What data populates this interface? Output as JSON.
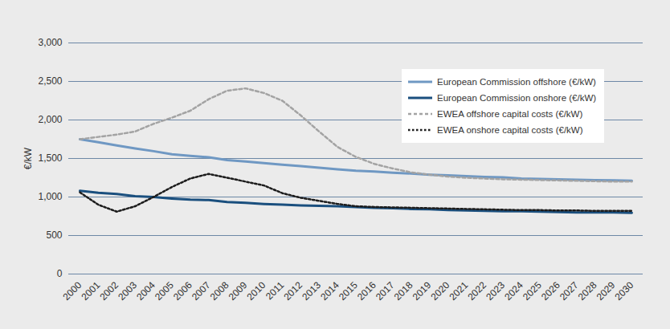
{
  "chart_data": {
    "type": "line",
    "y_label": "€/kW",
    "x": [
      2000,
      2001,
      2002,
      2003,
      2004,
      2005,
      2006,
      2007,
      2008,
      2009,
      2010,
      2011,
      2012,
      2013,
      2014,
      2015,
      2016,
      2017,
      2018,
      2019,
      2020,
      2021,
      2022,
      2023,
      2024,
      2025,
      2026,
      2027,
      2028,
      2029,
      2030
    ],
    "xlim": [
      2000,
      2030
    ],
    "xticks": [
      2000,
      2001,
      2002,
      2003,
      2004,
      2005,
      2006,
      2007,
      2008,
      2009,
      2010,
      2011,
      2012,
      2013,
      2014,
      2015,
      2016,
      2017,
      2018,
      2019,
      2020,
      2021,
      2022,
      2023,
      2024,
      2025,
      2026,
      2027,
      2028,
      2029,
      2030
    ],
    "ylim": [
      0,
      3000
    ],
    "yticks": [
      0,
      500,
      {
        "value": 1000,
        "label": "1,000"
      },
      {
        "value": 1500,
        "label": "1,500"
      },
      {
        "value": 2000,
        "label": "2,000"
      },
      {
        "value": 2500,
        "label": "2,500"
      },
      {
        "value": 3000,
        "label": "3,000"
      }
    ],
    "grid": true,
    "legend": "top-right",
    "series": [
      {
        "name": "European Commission offshore (€/kW)",
        "color": "#6f98c3",
        "line_style": "solid",
        "values": [
          1750,
          1710,
          1670,
          1630,
          1595,
          1555,
          1535,
          1515,
          1480,
          1460,
          1440,
          1420,
          1400,
          1380,
          1360,
          1340,
          1330,
          1315,
          1305,
          1290,
          1280,
          1270,
          1260,
          1255,
          1240,
          1235,
          1230,
          1225,
          1220,
          1215,
          1210
        ]
      },
      {
        "name": "European Commission onshore (€/kW)",
        "color": "#1a4f7e",
        "line_style": "solid",
        "values": [
          1080,
          1055,
          1040,
          1010,
          1000,
          980,
          965,
          960,
          935,
          925,
          910,
          900,
          890,
          885,
          880,
          870,
          860,
          855,
          845,
          840,
          830,
          825,
          820,
          815,
          815,
          810,
          805,
          800,
          800,
          800,
          795
        ]
      },
      {
        "name": "EWEA offshore capital costs (€/kW)",
        "color": "#a3a3a3",
        "line_style": "dashed",
        "values": [
          1750,
          1780,
          1810,
          1850,
          1950,
          2030,
          2120,
          2270,
          2380,
          2410,
          2350,
          2250,
          2060,
          1850,
          1650,
          1520,
          1430,
          1370,
          1320,
          1290,
          1265,
          1250,
          1240,
          1230,
          1225,
          1220,
          1215,
          1210,
          1205,
          1200,
          1200
        ]
      },
      {
        "name": "EWEA onshore capital costs (€/kW)",
        "color": "#1c1c1c",
        "line_style": "dotted",
        "values": [
          1060,
          900,
          810,
          880,
          1000,
          1130,
          1240,
          1300,
          1250,
          1200,
          1150,
          1050,
          990,
          950,
          910,
          880,
          870,
          865,
          860,
          855,
          850,
          845,
          840,
          835,
          830,
          830,
          825,
          825,
          820,
          820,
          820
        ]
      }
    ]
  }
}
